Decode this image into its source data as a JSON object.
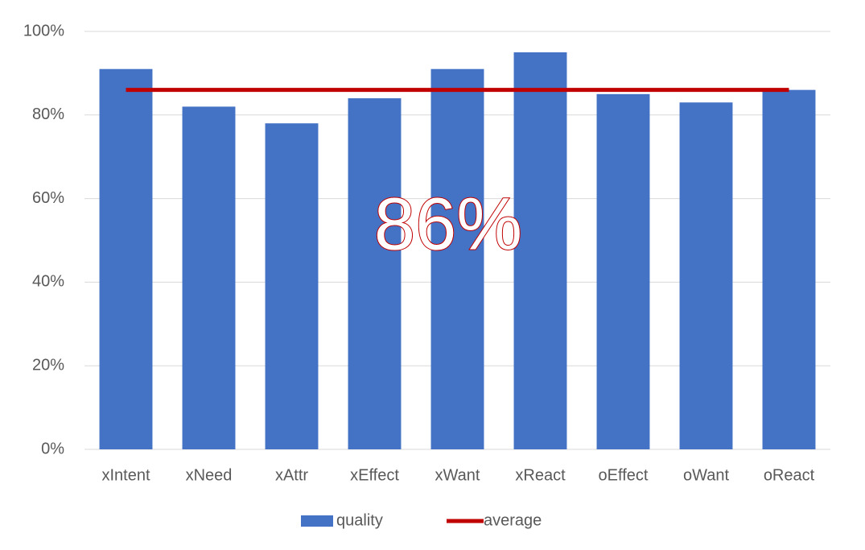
{
  "chart_data": {
    "type": "bar",
    "categories": [
      "xIntent",
      "xNeed",
      "xAttr",
      "xEffect",
      "xWant",
      "xReact",
      "oEffect",
      "oWant",
      "oReact"
    ],
    "series": [
      {
        "name": "quality",
        "type": "bar",
        "color": "#4472c4",
        "values": [
          91,
          82,
          78,
          84,
          91,
          95,
          85,
          83,
          86
        ]
      },
      {
        "name": "average",
        "type": "line",
        "color": "#c00000",
        "values": [
          86,
          86,
          86,
          86,
          86,
          86,
          86,
          86,
          86
        ]
      }
    ],
    "annotation": "86%",
    "ylim": [
      0,
      100
    ],
    "yticks": [
      {
        "value": 0,
        "label": "0%"
      },
      {
        "value": 20,
        "label": "20%"
      },
      {
        "value": 40,
        "label": "40%"
      },
      {
        "value": 60,
        "label": "60%"
      },
      {
        "value": 80,
        "label": "80%"
      },
      {
        "value": 100,
        "label": "100%"
      }
    ],
    "grid": true,
    "legend": "bottom"
  }
}
